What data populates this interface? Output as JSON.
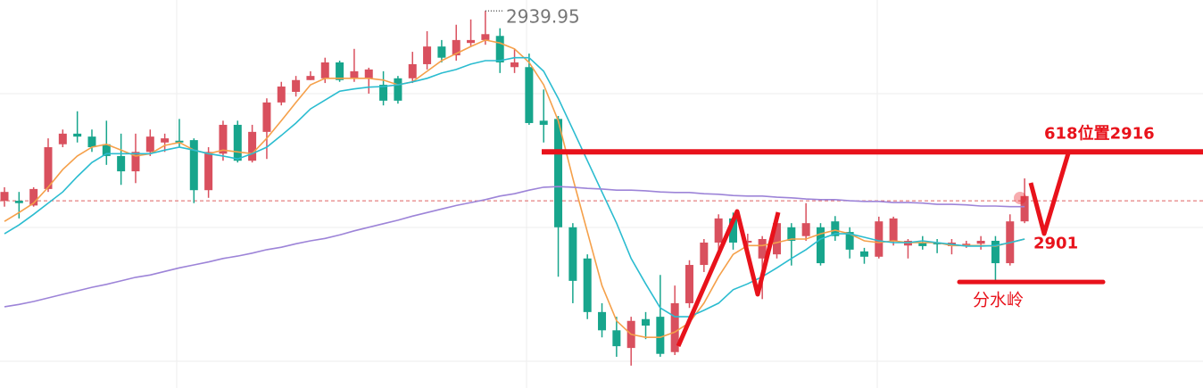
{
  "chart_data": {
    "type": "candlestick",
    "ylim": [
      2875.9,
      2941.8
    ],
    "up_color": "#d9505e",
    "down_color": "#17a58c",
    "open": [
      2907.7,
      2907.7,
      2906.9,
      2909.7,
      2917.3,
      2919.1,
      2918.6,
      2917.3,
      2915.3,
      2912.7,
      2916.0,
      2917.6,
      2917.9,
      2918.0,
      2909.5,
      2915.7,
      2920.6,
      2914.5,
      2919.4,
      2924.4,
      2926.2,
      2928.2,
      2928.5,
      2931.2,
      2928.5,
      2928.5,
      2927.4,
      2928.5,
      2928.5,
      2930.9,
      2933.9,
      2932.4,
      2934.5,
      2935.0,
      2935.7,
      2930.4,
      2930.4,
      2921.3,
      2921.6,
      2903.2,
      2897.9,
      2888.8,
      2885.7,
      2882.7,
      2887.6,
      2888.0,
      2882.0,
      2890.3,
      2896.8,
      2900.6,
      2904.7,
      2900.6,
      2897.9,
      2898.6,
      2903.2,
      2901.7,
      2903.2,
      2904.2,
      2902.4,
      2899.1,
      2898.2,
      2900.9,
      2900.1,
      2900.6,
      2900.6,
      2900.0,
      2900.1,
      2900.4,
      2900.9,
      2897.1,
      2904.2
    ],
    "close": [
      2909.2,
      2907.3,
      2909.7,
      2916.8,
      2919.1,
      2918.6,
      2916.8,
      2915.3,
      2912.7,
      2916.0,
      2918.6,
      2918.3,
      2917.6,
      2909.5,
      2916.0,
      2920.6,
      2914.5,
      2919.4,
      2924.4,
      2927.1,
      2928.2,
      2928.9,
      2931.2,
      2928.2,
      2929.7,
      2930.0,
      2924.7,
      2924.7,
      2930.9,
      2933.9,
      2932.0,
      2935.0,
      2935.0,
      2936.0,
      2931.2,
      2931.2,
      2920.9,
      2920.6,
      2903.2,
      2894.1,
      2888.8,
      2885.7,
      2883.0,
      2887.3,
      2886.5,
      2881.7,
      2890.3,
      2896.8,
      2900.6,
      2904.7,
      2900.6,
      2900.9,
      2901.2,
      2903.9,
      2900.9,
      2903.9,
      2897.1,
      2901.7,
      2899.4,
      2898.2,
      2904.2,
      2904.7,
      2900.9,
      2900.0,
      2900.3,
      2900.6,
      2900.4,
      2900.9,
      2897.1,
      2904.2,
      2908.5
    ],
    "high": [
      2910.0,
      2909.2,
      2910.0,
      2918.3,
      2919.8,
      2922.9,
      2919.8,
      2921.3,
      2919.1,
      2919.1,
      2919.8,
      2919.1,
      2921.6,
      2918.3,
      2916.8,
      2921.3,
      2921.3,
      2920.6,
      2925.1,
      2927.9,
      2928.9,
      2929.7,
      2932.0,
      2931.5,
      2933.5,
      2930.3,
      2929.7,
      2928.9,
      2933.0,
      2936.5,
      2935.0,
      2937.6,
      2938.5,
      2939.95,
      2937.0,
      2933.5,
      2932.7,
      2926.6,
      2922.1,
      2903.9,
      2898.6,
      2890.3,
      2888.0,
      2888.0,
      2888.8,
      2895.1,
      2893.3,
      2897.6,
      2901.2,
      2905.4,
      2905.7,
      2902.1,
      2901.7,
      2904.7,
      2903.9,
      2907.3,
      2903.9,
      2905.1,
      2903.2,
      2899.7,
      2905.0,
      2905.0,
      2901.2,
      2901.7,
      2901.2,
      2901.2,
      2900.9,
      2901.7,
      2901.7,
      2905.4,
      2911.5
    ],
    "low": [
      2906.7,
      2904.7,
      2906.7,
      2909.2,
      2916.8,
      2917.6,
      2916.0,
      2913.8,
      2910.4,
      2910.7,
      2915.3,
      2916.0,
      2916.8,
      2907.3,
      2908.2,
      2914.5,
      2914.2,
      2914.2,
      2914.8,
      2923.9,
      2925.4,
      2928.2,
      2927.7,
      2927.9,
      2927.9,
      2925.9,
      2923.9,
      2924.2,
      2927.7,
      2930.0,
      2931.2,
      2931.5,
      2933.9,
      2934.2,
      2929.4,
      2929.4,
      2920.6,
      2917.6,
      2894.8,
      2890.3,
      2887.6,
      2884.5,
      2881.2,
      2879.7,
      2884.2,
      2881.2,
      2881.5,
      2889.5,
      2895.6,
      2899.4,
      2899.4,
      2897.9,
      2891.0,
      2897.9,
      2896.7,
      2900.9,
      2896.7,
      2900.9,
      2897.9,
      2897.0,
      2897.9,
      2900.1,
      2897.9,
      2899.4,
      2898.8,
      2898.6,
      2899.7,
      2899.4,
      2893.6,
      2896.7,
      2903.9
    ],
    "series": [
      {
        "color": "#f5a04a",
        "values": [
          2904.2,
          2905.7,
          2907.3,
          2910.0,
          2913.0,
          2915.3,
          2916.8,
          2917.3,
          2916.3,
          2915.3,
          2915.7,
          2917.1,
          2917.6,
          2916.3,
          2915.7,
          2916.3,
          2916.0,
          2915.7,
          2918.3,
          2921.3,
          2924.4,
          2927.4,
          2928.5,
          2928.5,
          2928.5,
          2928.5,
          2928.2,
          2927.4,
          2927.9,
          2929.7,
          2931.5,
          2932.7,
          2933.9,
          2935.0,
          2934.5,
          2933.5,
          2931.2,
          2927.4,
          2921.3,
          2911.5,
          2902.4,
          2893.3,
          2887.3,
          2885.0,
          2884.5,
          2884.5,
          2885.4,
          2887.0,
          2890.3,
          2894.8,
          2898.6,
          2900.1,
          2900.1,
          2900.6,
          2901.2,
          2901.2,
          2902.1,
          2902.7,
          2902.1,
          2900.9,
          2900.6,
          2900.9,
          2900.6,
          2900.6,
          2900.6,
          2900.1,
          2900.1,
          2900.1,
          2900.0,
          2900.6,
          2901.2
        ]
      },
      {
        "color": "#2bbcd0",
        "values": [
          2902.1,
          2903.6,
          2905.4,
          2907.3,
          2909.2,
          2911.8,
          2914.2,
          2915.7,
          2915.7,
          2915.7,
          2915.7,
          2916.3,
          2916.8,
          2916.3,
          2915.7,
          2915.3,
          2914.8,
          2915.7,
          2916.8,
          2918.8,
          2920.9,
          2923.3,
          2924.8,
          2926.3,
          2926.7,
          2927.0,
          2927.1,
          2927.4,
          2927.9,
          2928.5,
          2929.4,
          2930.0,
          2930.9,
          2931.5,
          2931.5,
          2932.0,
          2932.0,
          2929.7,
          2925.1,
          2919.8,
          2914.5,
          2909.2,
          2903.9,
          2897.9,
          2893.6,
          2889.5,
          2888.0,
          2888.0,
          2889.1,
          2890.3,
          2892.6,
          2893.6,
          2894.8,
          2896.3,
          2897.9,
          2899.4,
          2901.2,
          2902.1,
          2902.1,
          2901.5,
          2900.9,
          2900.6,
          2900.6,
          2900.9,
          2900.6,
          2900.3,
          2900.0,
          2900.0,
          2900.1,
          2900.6,
          2901.2
        ]
      },
      {
        "color": "#9d84d8",
        "values": [
          2889.7,
          2890.1,
          2890.6,
          2891.2,
          2891.8,
          2892.4,
          2893.0,
          2893.5,
          2894.1,
          2894.7,
          2895.1,
          2895.7,
          2896.3,
          2896.8,
          2897.3,
          2897.9,
          2898.3,
          2898.8,
          2899.4,
          2899.8,
          2900.4,
          2900.9,
          2901.3,
          2901.9,
          2902.6,
          2903.2,
          2903.8,
          2904.4,
          2905.1,
          2905.7,
          2906.3,
          2906.9,
          2907.4,
          2907.9,
          2908.5,
          2908.9,
          2909.5,
          2910.0,
          2910.1,
          2910.0,
          2909.8,
          2909.7,
          2909.5,
          2909.5,
          2909.4,
          2909.2,
          2909.1,
          2909.1,
          2908.9,
          2908.8,
          2908.6,
          2908.5,
          2908.5,
          2908.3,
          2908.2,
          2908.0,
          2907.9,
          2907.9,
          2907.7,
          2907.6,
          2907.6,
          2907.4,
          2907.4,
          2907.3,
          2907.1,
          2907.1,
          2907.0,
          2906.8,
          2906.8,
          2906.7,
          2906.7
        ]
      }
    ],
    "price_line": 2907.7,
    "level_618": {
      "value": 2916,
      "label": "618位置2916"
    },
    "support_label": 2901,
    "watershed": {
      "value": 2893.9,
      "label": "分水岭"
    },
    "annotation_color": "#e8121b"
  }
}
